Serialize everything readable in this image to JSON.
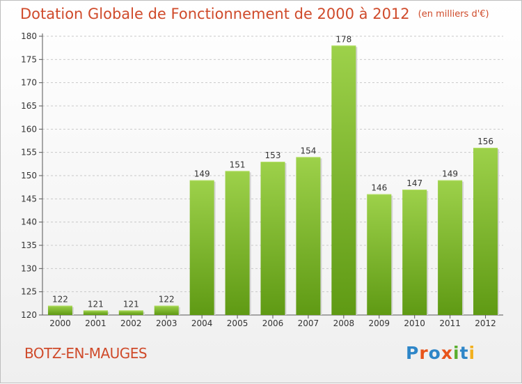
{
  "chart_data": {
    "type": "bar",
    "title": "Dotation Globale de Fonctionnement de 2000 à 2012",
    "subtitle": "(en milliers d'€)",
    "categories": [
      "2000",
      "2001",
      "2002",
      "2003",
      "2004",
      "2005",
      "2006",
      "2007",
      "2008",
      "2009",
      "2010",
      "2011",
      "2012"
    ],
    "values": [
      122,
      121,
      121,
      122,
      149,
      151,
      153,
      154,
      178,
      146,
      147,
      149,
      156
    ],
    "ylim": [
      120,
      180
    ],
    "yticks": [
      120,
      125,
      130,
      135,
      140,
      145,
      150,
      155,
      160,
      165,
      170,
      175,
      180
    ],
    "grid": "horizontal dashed",
    "bar_color": "#7fbf2a",
    "title_color": "#cf4a2a"
  },
  "footer": {
    "town": "BOTZ-EN-MAUGES",
    "logo_text": "Proxiti",
    "logo_colors": [
      "#2e86c8",
      "#e8541b",
      "#2e86c8",
      "#e8541b",
      "#5aae2e",
      "#2e86c8",
      "#f2b01e"
    ]
  }
}
